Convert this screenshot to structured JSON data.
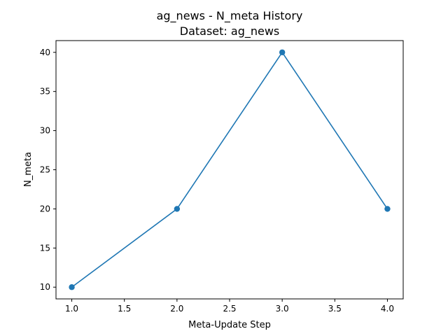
{
  "chart_data": {
    "type": "line",
    "title": "ag_news - N_meta History",
    "subtitle": "Dataset: ag_news",
    "xlabel": "Meta-Update Step",
    "ylabel": "N_meta",
    "x": [
      1.0,
      2.0,
      3.0,
      4.0
    ],
    "series": [
      {
        "values": [
          10,
          20,
          40,
          20
        ]
      }
    ],
    "xlim": [
      0.85,
      4.15
    ],
    "ylim": [
      8.5,
      41.5
    ],
    "xticks": [
      "1.0",
      "1.5",
      "2.0",
      "2.5",
      "3.0",
      "3.5",
      "4.0"
    ],
    "yticks": [
      "10",
      "15",
      "20",
      "25",
      "30",
      "35",
      "40"
    ],
    "grid": false,
    "marker": "circle",
    "line_color": "#1f77b4"
  }
}
